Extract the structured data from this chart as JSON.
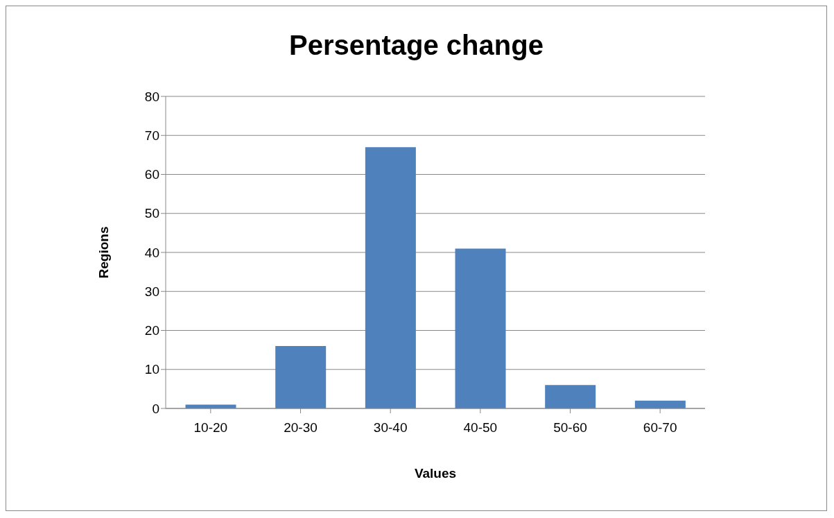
{
  "chart_data": {
    "type": "bar",
    "title": "Persentage change",
    "xlabel": "Values",
    "ylabel": "Regions",
    "categories": [
      "10-20",
      "20-30",
      "30-40",
      "40-50",
      "50-60",
      "60-70"
    ],
    "values": [
      1,
      16,
      67,
      41,
      6,
      2
    ],
    "color": "#4f81bd",
    "ylim": [
      0,
      80
    ],
    "yticks": [
      0,
      10,
      20,
      30,
      40,
      50,
      60,
      70,
      80
    ],
    "grid": "y"
  }
}
